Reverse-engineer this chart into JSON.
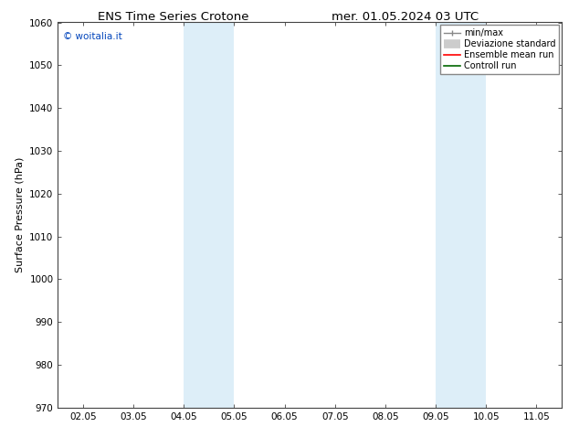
{
  "title_left": "ENS Time Series Crotone",
  "title_right": "mer. 01.05.2024 03 UTC",
  "ylabel": "Surface Pressure (hPa)",
  "ylim": [
    970,
    1060
  ],
  "yticks": [
    970,
    980,
    990,
    1000,
    1010,
    1020,
    1030,
    1040,
    1050,
    1060
  ],
  "xtick_labels": [
    "02.05",
    "03.05",
    "04.05",
    "05.05",
    "06.05",
    "07.05",
    "08.05",
    "09.05",
    "10.05",
    "11.05"
  ],
  "xtick_positions": [
    0,
    1,
    2,
    3,
    4,
    5,
    6,
    7,
    8,
    9
  ],
  "xlim": [
    -0.5,
    9.5
  ],
  "shaded_bands": [
    {
      "xmin": 2.0,
      "xmax": 3.0,
      "color": "#ddeef8"
    },
    {
      "xmin": 7.0,
      "xmax": 8.0,
      "color": "#ddeef8"
    }
  ],
  "watermark_text": "© woitalia.it",
  "watermark_color": "#0044bb",
  "bg_color": "#ffffff",
  "title_fontsize": 9.5,
  "tick_fontsize": 7.5,
  "ylabel_fontsize": 8,
  "legend_fontsize": 7,
  "spine_color": "#444444",
  "tick_color": "#444444"
}
